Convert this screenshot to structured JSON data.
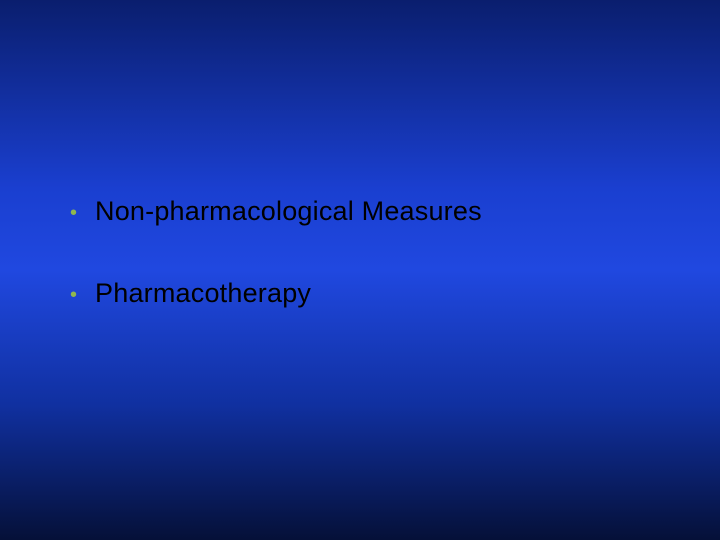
{
  "slide": {
    "background": {
      "gradient_stops": [
        "#0a1e6e",
        "#1a3fd0",
        "#2048e0",
        "#1030a0",
        "#051038"
      ],
      "direction": "to bottom"
    },
    "bullets": [
      {
        "text": "Non-pharmacological Measures"
      },
      {
        "text": "Pharmacotherapy"
      }
    ],
    "bullet_color": "#8fb84f",
    "text_color": "#000000",
    "font_family": "Arial",
    "font_size_pt": 20,
    "bullet_glyph": "•"
  }
}
